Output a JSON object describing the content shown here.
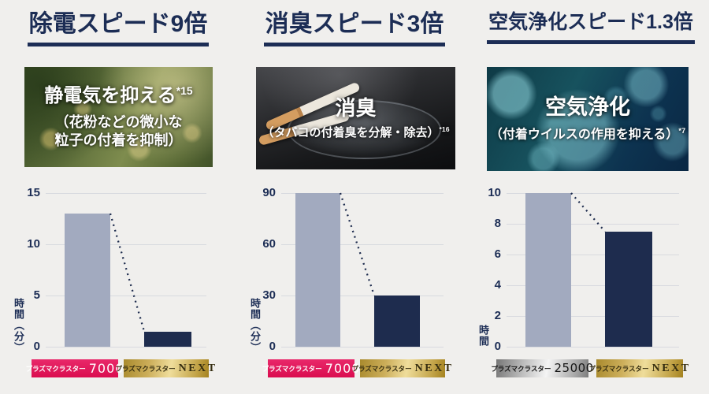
{
  "page": {
    "background": "#f0efed"
  },
  "colors": {
    "title_navy": "#1c2d55",
    "bar_compare": "#a2aabf",
    "bar_next": "#1e2c4e",
    "gridline": "#d8dadf",
    "connector": "#1e2c4e",
    "badge_red": "#da0d4f",
    "badge_gold": "#d9bd6a",
    "badge_silver": "#bebebe"
  },
  "chart_data": [
    {
      "type": "bar",
      "title": "除電スピード9倍",
      "categories": [
        "プラズマクラスター7000",
        "プラズマクラスターNEXT"
      ],
      "values": [
        13,
        1.5
      ],
      "xlabel": "",
      "ylabel": "時間（分）",
      "ylim": [
        0,
        15
      ],
      "yticks": [
        0,
        5,
        10,
        15
      ],
      "grid": true,
      "legend": "none",
      "bar_colors": [
        "#a2aabf",
        "#1e2c4e"
      ],
      "annotation": "dotted connector from top of bar 1 down to top of bar 2"
    },
    {
      "type": "bar",
      "title": "消臭スピード3倍",
      "categories": [
        "プラズマクラスター7000",
        "プラズマクラスターNEXT"
      ],
      "values": [
        90,
        30
      ],
      "xlabel": "",
      "ylabel": "時間（分）",
      "ylim": [
        0,
        90
      ],
      "yticks": [
        0,
        30,
        60,
        90
      ],
      "grid": true,
      "legend": "none",
      "bar_colors": [
        "#a2aabf",
        "#1e2c4e"
      ],
      "annotation": "dotted connector from top of bar 1 down to top of bar 2"
    },
    {
      "type": "bar",
      "title": "空気浄化スピード1.3倍",
      "categories": [
        "プラズマクラスター25000",
        "プラズマクラスターNEXT"
      ],
      "values": [
        10,
        7.5
      ],
      "xlabel": "",
      "ylabel": "時間",
      "ylim": [
        0,
        10
      ],
      "yticks": [
        0,
        2,
        4,
        6,
        8,
        10
      ],
      "grid": true,
      "legend": "none",
      "bar_colors": [
        "#a2aabf",
        "#1e2c4e"
      ],
      "annotation": "dotted connector from top of bar 1 down to top of bar 2"
    }
  ],
  "columns": [
    {
      "title": "除電スピード9倍",
      "photo": {
        "theme": "pollen",
        "heading": "静電気を抑える",
        "heading_note": "*15",
        "sub_lines": [
          "（花粉などの微小な",
          "粒子の付着を抑制）"
        ],
        "sub_note": ""
      },
      "badges": [
        {
          "brand": "プラズマクラスター",
          "model": "7000",
          "variant": "red"
        },
        {
          "brand": "プラズマクラスター",
          "model": "NEXT",
          "variant": "gold"
        }
      ]
    },
    {
      "title": "消臭スピード3倍",
      "photo": {
        "theme": "ashtray",
        "heading": "消臭",
        "heading_note": "",
        "sub_lines": [
          "（タバコの付着臭を分解・除去）"
        ],
        "sub_note": "*16"
      },
      "badges": [
        {
          "brand": "プラズマクラスター",
          "model": "7000",
          "variant": "red"
        },
        {
          "brand": "プラズマクラスター",
          "model": "NEXT",
          "variant": "gold"
        }
      ]
    },
    {
      "title": "空気浄化スピード1.3倍",
      "photo": {
        "theme": "virus",
        "heading": "空気浄化",
        "heading_note": "",
        "sub_lines": [
          "（付着ウイルスの作用を抑える）"
        ],
        "sub_note": "*7"
      },
      "badges": [
        {
          "brand": "プラズマクラスター",
          "model": "25000",
          "variant": "silver"
        },
        {
          "brand": "プラズマクラスター",
          "model": "NEXT",
          "variant": "gold"
        }
      ]
    }
  ]
}
